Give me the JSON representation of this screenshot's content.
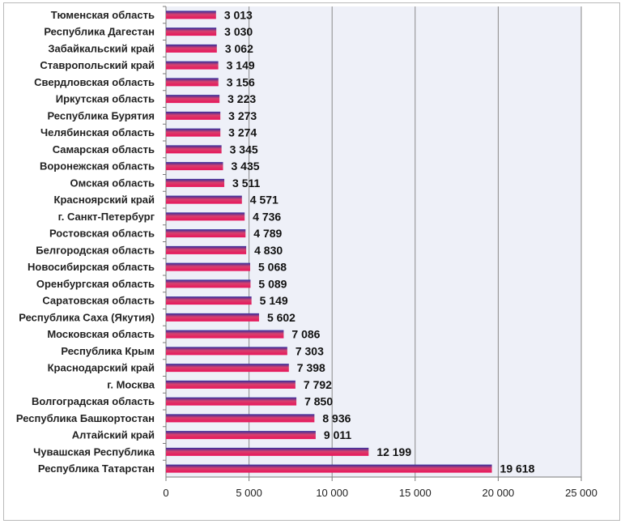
{
  "chart_data": {
    "type": "bar",
    "orientation": "horizontal",
    "categories": [
      "Тюменская область",
      "Республика Дагестан",
      "Забайкальский край",
      "Ставропольский край",
      "Свердловская область",
      "Иркутская область",
      "Республика Бурятия",
      "Челябинская область",
      "Самарская область",
      "Воронежская область",
      "Омская область",
      "Красноярский край",
      "г. Санкт-Петербург",
      "Ростовская область",
      "Белгородская область",
      "Новосибирская область",
      "Оренбургская область",
      "Саратовская область",
      "Республика Саха (Якутия)",
      "Московская область",
      "Республика Крым",
      "Краснодарский край",
      "г. Москва",
      "Волгоградская область",
      "Республика Башкортостан",
      "Алтайский край",
      "Чувашская Республика",
      "Республика Татарстан"
    ],
    "values": [
      3013,
      3030,
      3062,
      3149,
      3156,
      3223,
      3273,
      3274,
      3345,
      3435,
      3511,
      4571,
      4736,
      4789,
      4830,
      5068,
      5089,
      5149,
      5602,
      7086,
      7303,
      7398,
      7792,
      7850,
      8936,
      9011,
      12199,
      19618
    ],
    "value_labels": [
      "3 013",
      "3 030",
      "3 062",
      "3 149",
      "3 156",
      "3 223",
      "3 273",
      "3 274",
      "3 345",
      "3 435",
      "3 511",
      "4 571",
      "4 736",
      "4 789",
      "4 830",
      "5 068",
      "5 089",
      "5 149",
      "5 602",
      "7 086",
      "7 303",
      "7 398",
      "7 792",
      "7 850",
      "8 936",
      "9 011",
      "12 199",
      "19 618"
    ],
    "xlim": [
      0,
      25000
    ],
    "x_ticks": [
      0,
      5000,
      10000,
      15000,
      20000,
      25000
    ],
    "x_tick_labels": [
      "0",
      "5 000",
      "10 000",
      "15 000",
      "20 000",
      "25 000"
    ],
    "grid": true,
    "legend": "none",
    "colors": {
      "bar_top": "#2e2e9e",
      "bar_mid": "#d8406e",
      "bar_bottom": "#e8145a",
      "plot_bg": "#eef0f8",
      "grid": "#8a8a8a"
    }
  }
}
